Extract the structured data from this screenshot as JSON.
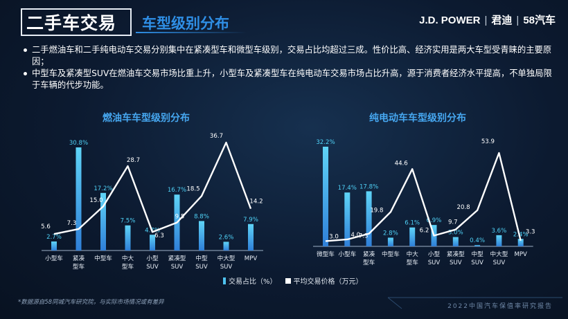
{
  "header": {
    "title": "二手车交易",
    "subtitle": "车型级别分布",
    "brand_jd": "J.D. POWER",
    "brand_jundi": "君迪",
    "brand_58": "58汽车"
  },
  "bullets": [
    "二手燃油车和二手纯电动车交易分别集中在紧凑型车和微型车级别，交易占比均超过三成。性价比高、经济实用是两大车型受青睐的主要原因；",
    "中型车及紧凑型SUV在燃油车交易市场比重上升，小型车及紧凑型车在纯电动车交易市场占比升高，源于消费者经济水平提高，不单独局限于车辆的代步功能。"
  ],
  "legend": {
    "bar": "交易占比（%）",
    "line": "平均交易价格（万元）"
  },
  "footnote": "*数据源自58同城汽车研究院，与实际市场情况或有差异",
  "report_name": "2022中国汽车保值率研究报告",
  "colors": {
    "bar": "#4fc3f0",
    "line": "#ffffff",
    "title_accent": "#2f8fe6",
    "chart_title": "#46a7f0"
  },
  "chart_data": [
    {
      "type": "bar",
      "title": "燃油车车型级别分布",
      "categories": [
        "小型车",
        "紧凑\n型车",
        "中型车",
        "中大\n型车",
        "小型\nSUV",
        "紧凑型\nSUV",
        "中型\nSUV",
        "中大型\nSUV",
        "MPV"
      ],
      "series": [
        {
          "name": "交易占比（%）",
          "type": "bar",
          "values": [
            2.7,
            30.8,
            17.2,
            7.5,
            4.7,
            16.7,
            8.8,
            2.6,
            7.9
          ],
          "labels": [
            "2.7%",
            "30.8%",
            "17.2%",
            "7.5%",
            "4.7%",
            "16.7%",
            "8.8%",
            "2.6%",
            "7.9%"
          ]
        },
        {
          "name": "平均交易价格（万元）",
          "type": "line",
          "values": [
            5.6,
            7.3,
            15.0,
            28.7,
            6.3,
            9.5,
            18.5,
            36.7,
            14.2
          ],
          "labels": [
            "5.6",
            "7.3",
            "15.0",
            "28.7",
            "6.3",
            "9.5",
            "18.5",
            "36.7",
            "14.2"
          ]
        }
      ]
    },
    {
      "type": "bar",
      "title": "纯电动车车型级别分布",
      "categories": [
        "微型车",
        "小型车",
        "紧凑\n型车",
        "中型车",
        "中大\n型车",
        "小型\nSUV",
        "紧凑型\nSUV",
        "中型\nSUV",
        "中大型\nSUV",
        "MPV"
      ],
      "series": [
        {
          "name": "交易占比（%）",
          "type": "bar",
          "values": [
            32.2,
            17.4,
            17.8,
            2.8,
            6.1,
            6.9,
            3.0,
            0.4,
            3.6,
            2.4
          ],
          "labels": [
            "32.2%",
            "17.4%",
            "17.8%",
            "2.8%",
            "6.1%",
            "6.9%",
            "3.0%",
            "0.4%",
            "3.6%",
            "2.4%"
          ]
        },
        {
          "name": "平均交易价格（万元）",
          "type": "line",
          "values": [
            3.0,
            4.0,
            7.3,
            19.8,
            44.6,
            6.2,
            9.7,
            20.8,
            53.9,
            3.3
          ],
          "labels": [
            "3.0",
            "4.0",
            "7.3",
            "19.8",
            "44.6",
            "6.2",
            "9.7",
            "20.8",
            "53.9",
            "3.3"
          ]
        }
      ]
    }
  ]
}
